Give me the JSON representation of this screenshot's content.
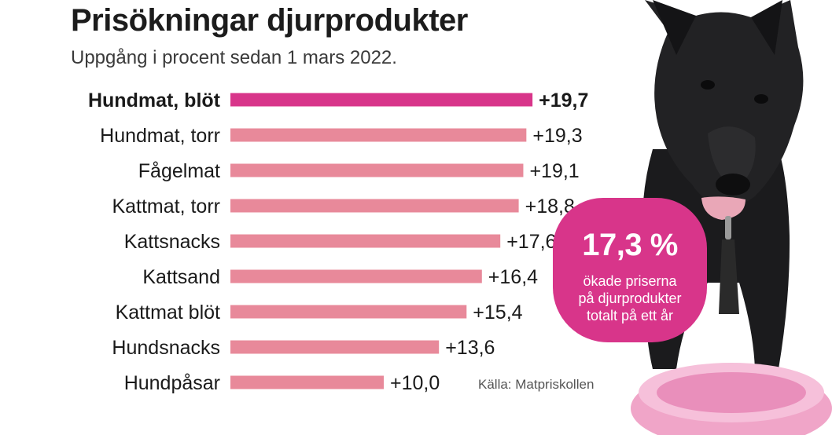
{
  "title": "Prisökningar djurprodukter",
  "subtitle": "Uppgång i procent sedan 1 mars 2022.",
  "source": "Källa: Matpriskollen",
  "callout": {
    "value": "17,3 %",
    "lines": [
      "ökade priserna",
      "på djurprodukter",
      "totalt på ett år"
    ]
  },
  "colors": {
    "highlight": "#d8358a",
    "bar": "#e8899a",
    "text": "#1a1a1a"
  },
  "chart_data": {
    "type": "bar",
    "orientation": "horizontal",
    "title": "Prisökningar djurprodukter",
    "subtitle": "Uppgång i procent sedan 1 mars 2022.",
    "xlabel": "",
    "ylabel": "",
    "xlim": [
      0,
      20
    ],
    "grid": false,
    "categories": [
      "Hundmat, blöt",
      "Hundmat, torr",
      "Fågelmat",
      "Kattmat, torr",
      "Kattsnacks",
      "Kattsand",
      "Kattmat blöt",
      "Hundsnacks",
      "Hundpåsar"
    ],
    "values": [
      19.7,
      19.3,
      19.1,
      18.8,
      17.6,
      16.4,
      15.4,
      13.6,
      10.0
    ],
    "value_labels": [
      "+19,7",
      "+19,3",
      "+19,1",
      "+18,8",
      "+17,6",
      "+16,4",
      "+15,4",
      "+13,6",
      "+10,0"
    ],
    "highlighted_index": 0
  }
}
